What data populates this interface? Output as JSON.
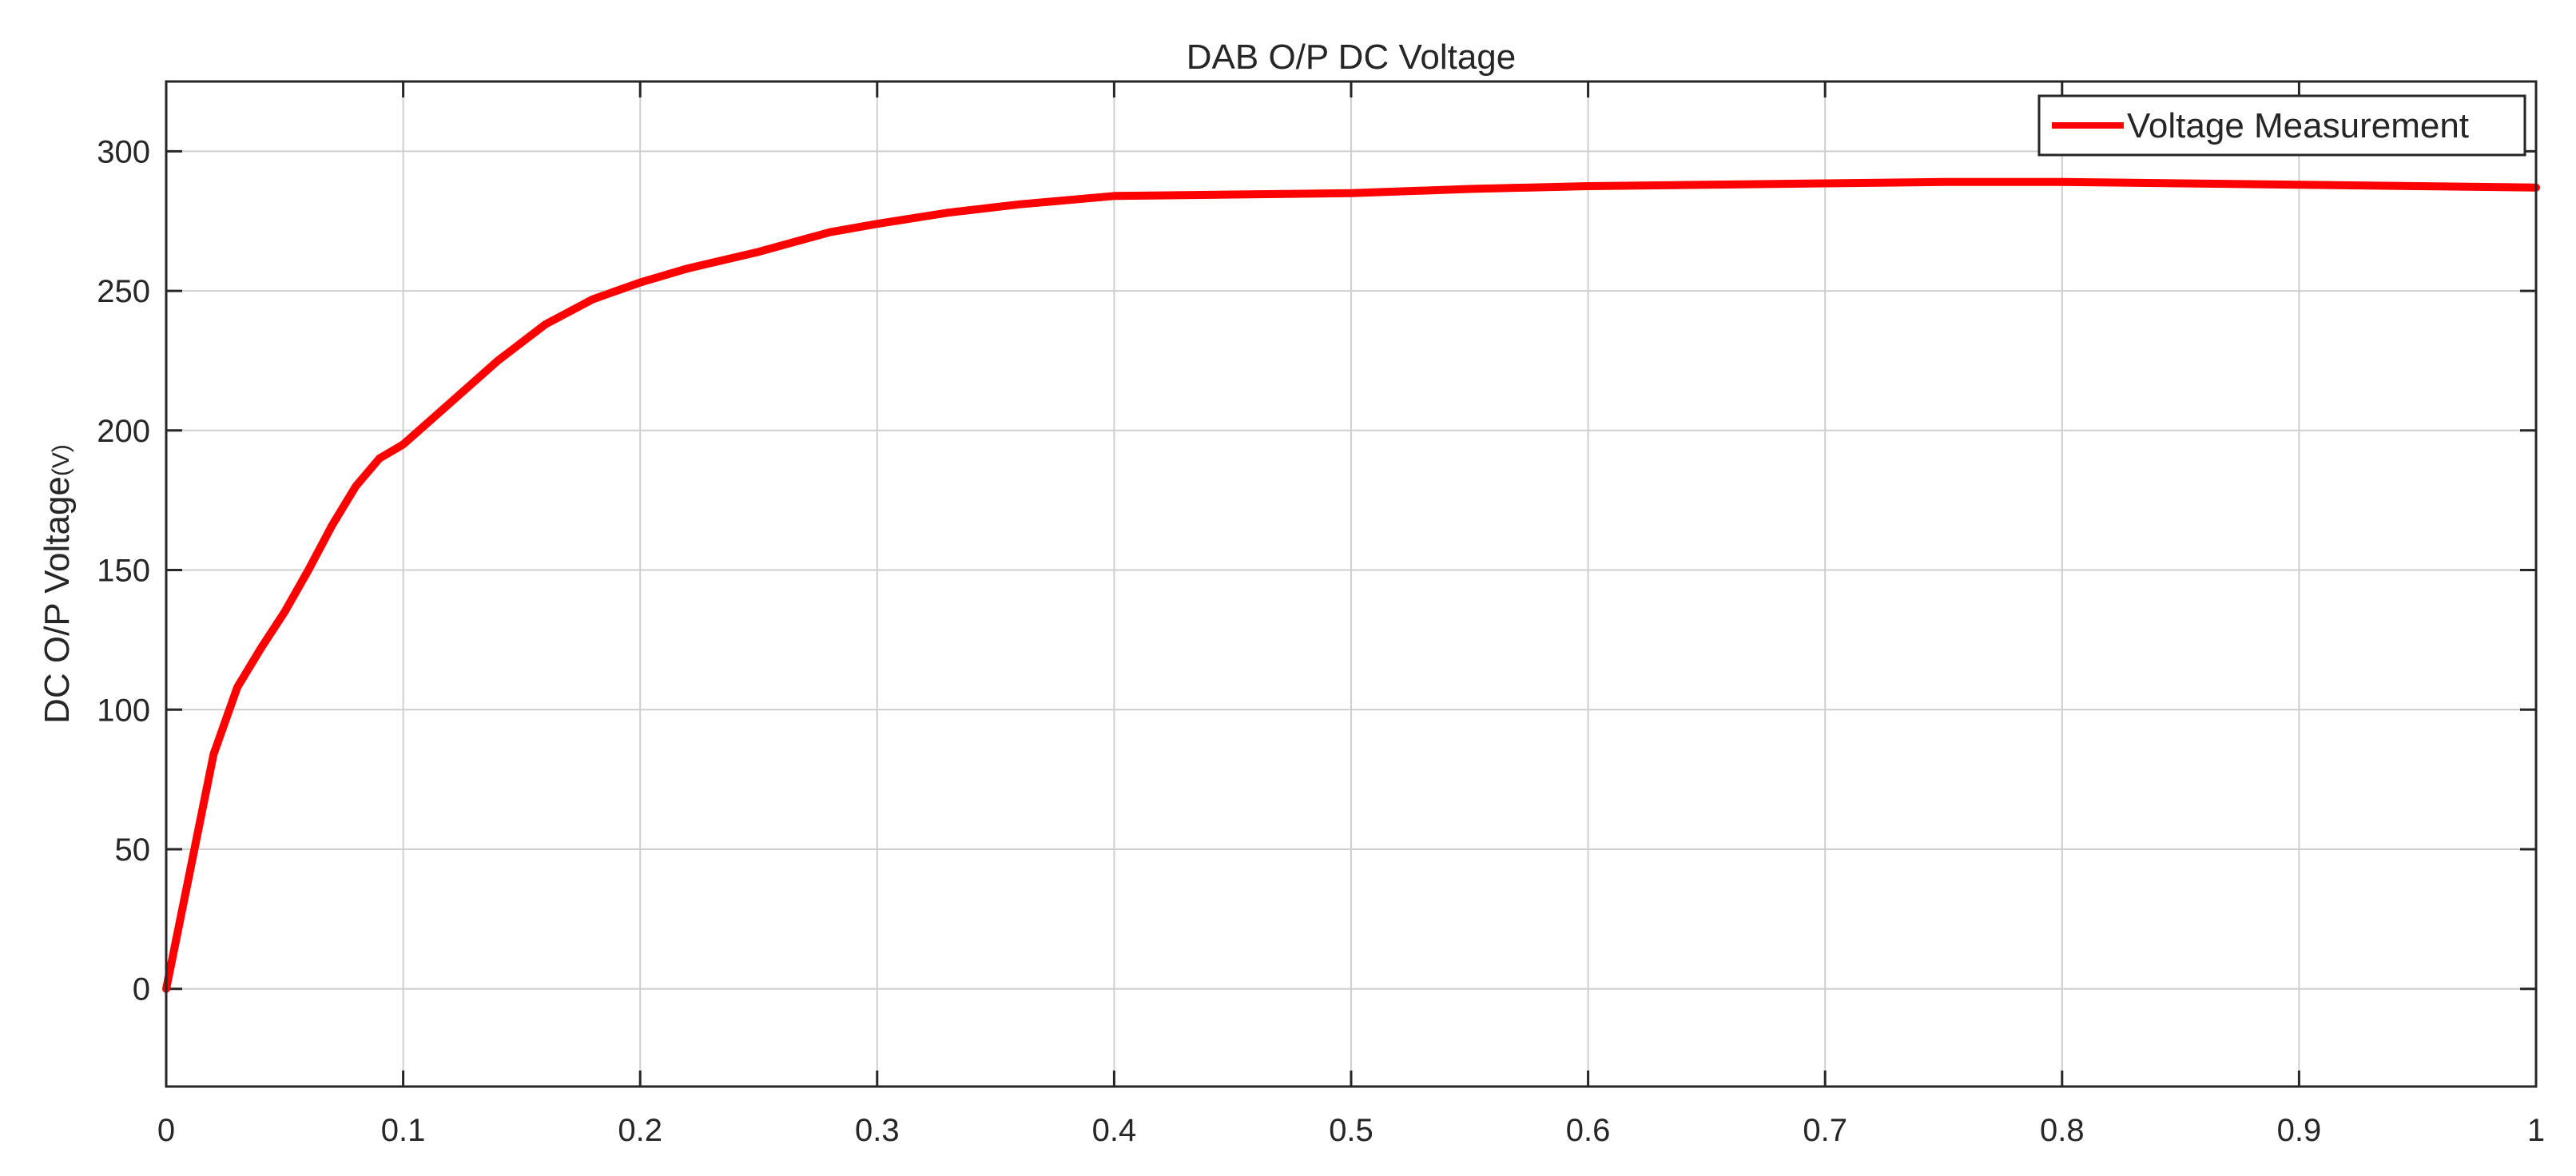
{
  "chart_data": {
    "type": "line",
    "title": "DAB O/P DC Voltage",
    "xlabel": "",
    "ylabel": "DC O/P Voltage",
    "ylabel_unit": "(V)",
    "xlim": [
      0,
      1
    ],
    "ylim": [
      -35,
      325
    ],
    "x_ticks": [
      0,
      0.1,
      0.2,
      0.3,
      0.4,
      0.5,
      0.6,
      0.7,
      0.8,
      0.9,
      1
    ],
    "x_tick_labels": [
      "0",
      "0.1",
      "0.2",
      "0.3",
      "0.4",
      "0.5",
      "0.6",
      "0.7",
      "0.8",
      "0.9",
      "1"
    ],
    "y_ticks": [
      0,
      50,
      100,
      150,
      200,
      250,
      300
    ],
    "y_tick_labels": [
      "0",
      "50",
      "100",
      "150",
      "200",
      "250",
      "300"
    ],
    "grid": true,
    "legend": "top-right",
    "series": [
      {
        "name": "Voltage Measurement",
        "color": "#ff0000",
        "x": [
          0,
          0.01,
          0.02,
          0.03,
          0.04,
          0.05,
          0.06,
          0.07,
          0.08,
          0.09,
          0.1,
          0.12,
          0.14,
          0.16,
          0.18,
          0.2,
          0.22,
          0.25,
          0.28,
          0.3,
          0.33,
          0.36,
          0.4,
          0.45,
          0.5,
          0.55,
          0.6,
          0.65,
          0.7,
          0.75,
          0.8,
          0.85,
          0.9,
          0.95,
          1.0
        ],
        "values": [
          0,
          42,
          84,
          108,
          122,
          135,
          150,
          166,
          180,
          190,
          195,
          210,
          225,
          238,
          247,
          253,
          258,
          264,
          271,
          274,
          278,
          281,
          284,
          284.5,
          285,
          286.5,
          287.5,
          288,
          288.5,
          289,
          289,
          288.5,
          288,
          287.5,
          287
        ]
      }
    ]
  }
}
